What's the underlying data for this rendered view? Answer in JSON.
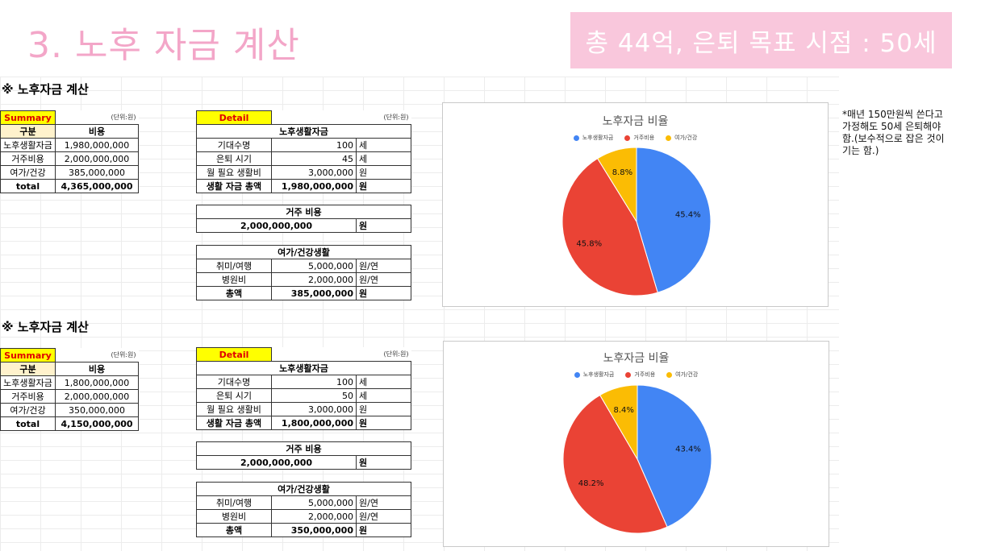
{
  "header": {
    "title": "3. 노후 자금 계산",
    "banner": "총 44억, 은퇴 목표 시점 : 50세"
  },
  "note": "*매년 150만원씩 쓴다고 가정해도 50세 은퇴해야 함.(보수적으로 잡은 것이기는 함.)",
  "colors": {
    "blue": "#4285f4",
    "red": "#ea4335",
    "yellow": "#fbbc04"
  },
  "sections": [
    {
      "heading": "※ 노후자금 계산",
      "summary": {
        "label": "Summary",
        "unit": "(단위:원)",
        "headers": [
          "구분",
          "비용"
        ],
        "rows": [
          {
            "name": "노후생활자금",
            "value": "1,980,000,000"
          },
          {
            "name": "거주비용",
            "value": "2,000,000,000"
          },
          {
            "name": "여가/건강",
            "value": "385,000,000"
          },
          {
            "name": "total",
            "value": "4,365,000,000"
          }
        ]
      },
      "detail": {
        "label": "Detail",
        "unit": "(단위:원)",
        "living": {
          "title": "노후생활자금",
          "rows": [
            {
              "name": "기대수명",
              "value": "100",
              "unit": "세"
            },
            {
              "name": "은퇴 시기",
              "value": "45",
              "unit": "세"
            },
            {
              "name": "월 필요 생활비",
              "value": "3,000,000",
              "unit": "원"
            },
            {
              "name": "생활 자금 총액",
              "value": "1,980,000,000",
              "unit": "원"
            }
          ]
        },
        "housing": {
          "title": "거주 비용",
          "value": "2,000,000,000",
          "unit": "원"
        },
        "leisure": {
          "title": "여가/건강생활",
          "rows": [
            {
              "name": "취미/여행",
              "value": "5,000,000",
              "unit": "원/연"
            },
            {
              "name": "병원비",
              "value": "2,000,000",
              "unit": "원/연"
            },
            {
              "name": "총액",
              "value": "385,000,000",
              "unit": "원"
            }
          ]
        }
      },
      "chart": {
        "title": "노후자금 비율",
        "legend": [
          "노후생활자금",
          "거주비용",
          "여가/건강"
        ],
        "labels": [
          "45.4%",
          "45.8%",
          "8.8%"
        ],
        "values": [
          45.4,
          45.8,
          8.8
        ]
      }
    },
    {
      "heading": "※ 노후자금 계산",
      "summary": {
        "label": "Summary",
        "unit": "(단위:원)",
        "headers": [
          "구분",
          "비용"
        ],
        "rows": [
          {
            "name": "노후생활자금",
            "value": "1,800,000,000"
          },
          {
            "name": "거주비용",
            "value": "2,000,000,000"
          },
          {
            "name": "여가/건강",
            "value": "350,000,000"
          },
          {
            "name": "total",
            "value": "4,150,000,000"
          }
        ]
      },
      "detail": {
        "label": "Detail",
        "unit": "(단위:원)",
        "living": {
          "title": "노후생활자금",
          "rows": [
            {
              "name": "기대수명",
              "value": "100",
              "unit": "세"
            },
            {
              "name": "은퇴 시기",
              "value": "50",
              "unit": "세"
            },
            {
              "name": "월 필요 생활비",
              "value": "3,000,000",
              "unit": "원"
            },
            {
              "name": "생활 자금 총액",
              "value": "1,800,000,000",
              "unit": "원"
            }
          ]
        },
        "housing": {
          "title": "거주 비용",
          "value": "2,000,000,000",
          "unit": "원"
        },
        "leisure": {
          "title": "여가/건강생활",
          "rows": [
            {
              "name": "취미/여행",
              "value": "5,000,000",
              "unit": "원/연"
            },
            {
              "name": "병원비",
              "value": "2,000,000",
              "unit": "원/연"
            },
            {
              "name": "총액",
              "value": "350,000,000",
              "unit": "원"
            }
          ]
        }
      },
      "chart": {
        "title": "노후자금 비율",
        "legend": [
          "노후생활자금",
          "거주비용",
          "여가/건강"
        ],
        "labels": [
          "43.4%",
          "48.2%",
          "8.4%"
        ],
        "values": [
          43.4,
          48.2,
          8.4
        ]
      }
    }
  ],
  "chart_data": [
    {
      "type": "pie",
      "title": "노후자금 비율",
      "categories": [
        "노후생활자금",
        "거주비용",
        "여가/건강"
      ],
      "values": [
        45.4,
        45.8,
        8.8
      ],
      "legend": "top"
    },
    {
      "type": "pie",
      "title": "노후자금 비율",
      "categories": [
        "노후생활자금",
        "거주비용",
        "여가/건강"
      ],
      "values": [
        43.4,
        48.2,
        8.4
      ],
      "legend": "top"
    }
  ]
}
